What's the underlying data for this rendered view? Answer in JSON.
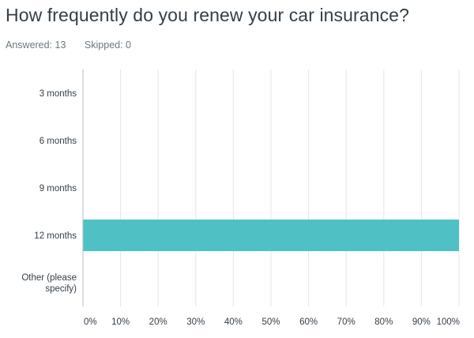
{
  "question": {
    "title": "How frequently do you renew your car insurance?",
    "answered_label": "Answered: 13",
    "skipped_label": "Skipped: 0"
  },
  "colors": {
    "bar": "#4fc1c4",
    "grid": "#e3e6e8",
    "axis": "#b5bcc1",
    "text": "#333e48"
  },
  "chart_data": {
    "type": "bar",
    "orientation": "horizontal",
    "categories": [
      [
        "3 months"
      ],
      [
        "6 months"
      ],
      [
        "9 months"
      ],
      [
        "12 months"
      ],
      [
        "Other (please",
        "specify)"
      ]
    ],
    "values": [
      0,
      0,
      0,
      100,
      0
    ],
    "xlim": [
      0,
      100
    ],
    "x_ticks": [
      "0%",
      "10%",
      "20%",
      "30%",
      "40%",
      "50%",
      "60%",
      "70%",
      "80%",
      "90%",
      "100%"
    ],
    "title": "",
    "xlabel": "",
    "ylabel": "",
    "grid": true,
    "legend": "none"
  }
}
